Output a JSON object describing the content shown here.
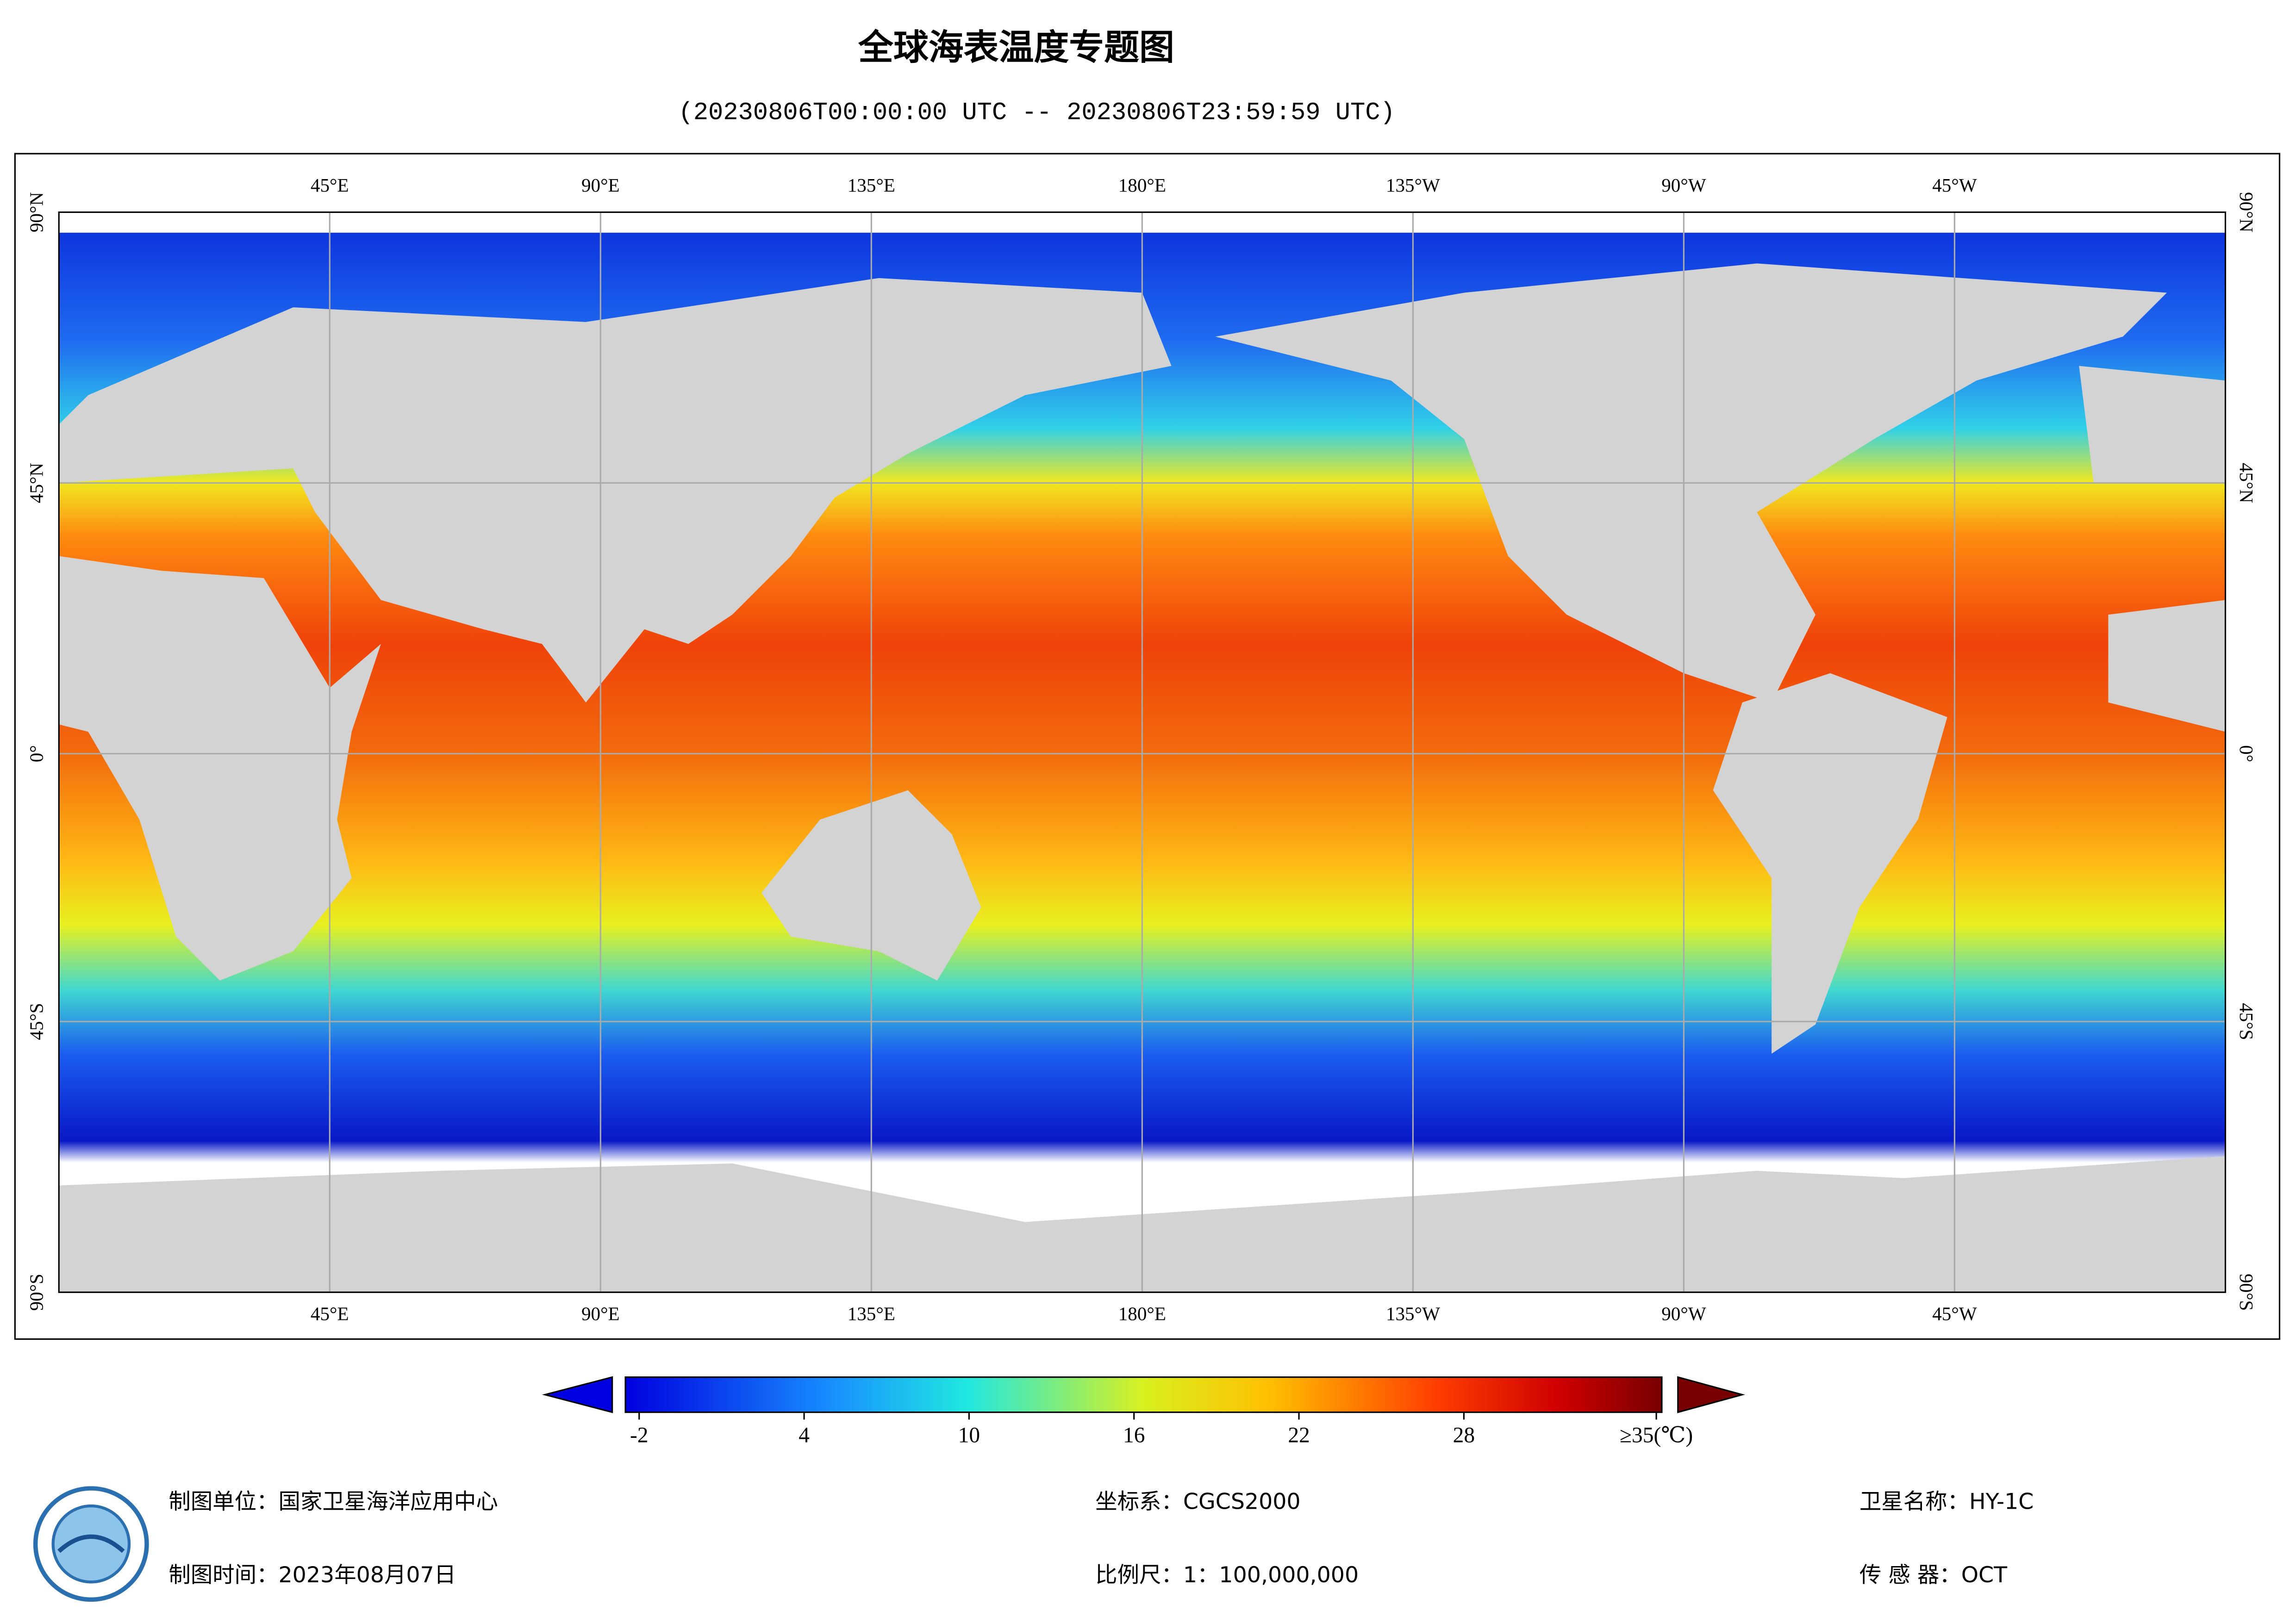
{
  "header": {
    "title": "全球海表温度专题图",
    "subtitle": "(20230806T00:00:00 UTC -- 20230806T23:59:59 UTC)"
  },
  "map": {
    "lon_labels": [
      "45°E",
      "90°E",
      "135°E",
      "180°E",
      "135°W",
      "90°W",
      "45°W"
    ],
    "lat_labels": [
      "90°N",
      "45°N",
      "0°",
      "45°S",
      "90°S"
    ]
  },
  "legend": {
    "range": [
      -2.5,
      35.2
    ],
    "ticks": [
      -2,
      4,
      10,
      16,
      22,
      28,
      {
        "value": 35,
        "label": "≥35(℃)"
      }
    ]
  },
  "footer": {
    "unit": "制图单位：国家卫星海洋应用中心",
    "date": "制图时间：2023年08月07日",
    "crs": "坐标系：CGCS2000",
    "scale": "比例尺：1：100,000,000",
    "satellite": "卫星名称：HY-1C",
    "sensor": "传 感 器：OCT"
  }
}
